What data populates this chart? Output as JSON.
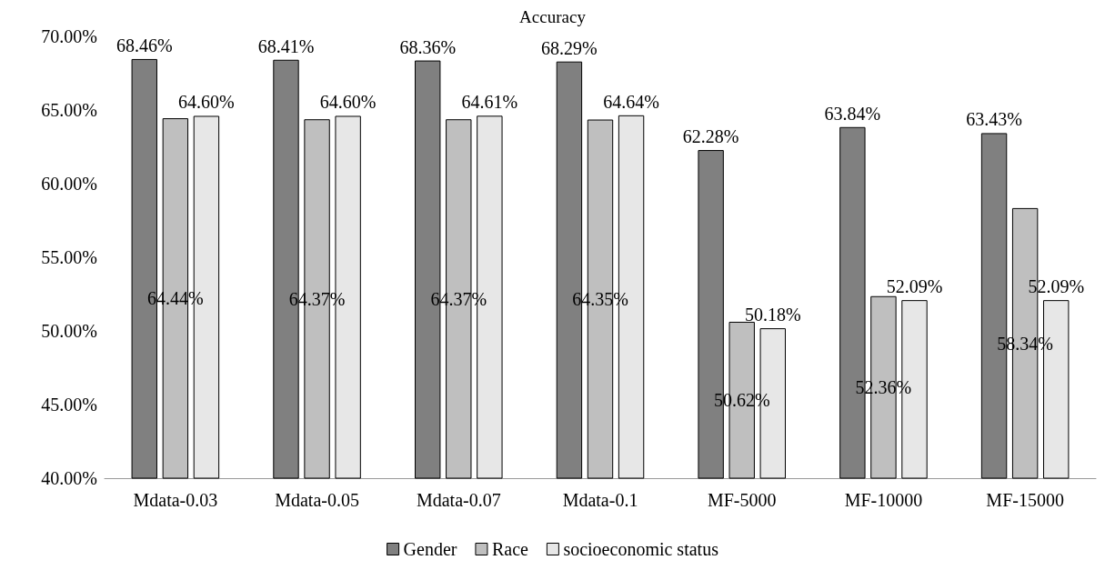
{
  "chart_data": {
    "type": "bar",
    "title": "Accuracy",
    "categories": [
      "Mdata-0.03",
      "Mdata-0.05",
      "Mdata-0.07",
      "Mdata-0.1",
      "MF-5000",
      "MF-10000",
      "MF-15000"
    ],
    "series": [
      {
        "name": "Gender",
        "color": "#808080",
        "values": [
          68.46,
          68.41,
          68.36,
          68.29,
          62.28,
          63.84,
          63.43
        ],
        "value_labels": [
          "68.46%",
          "68.41%",
          "68.36%",
          "68.29%",
          "62.28%",
          "63.84%",
          "63.43%"
        ]
      },
      {
        "name": "Race",
        "color": "#bfbfbf",
        "values": [
          64.44,
          64.37,
          64.37,
          64.35,
          50.62,
          52.36,
          58.34
        ],
        "value_labels": [
          "64.44%",
          "64.37%",
          "64.37%",
          "64.35%",
          "50.62%",
          "52.36%",
          "58.34%"
        ]
      },
      {
        "name": "socioeconomic status",
        "color": "#e7e7e7",
        "values": [
          64.6,
          64.6,
          64.61,
          64.64,
          50.18,
          52.09,
          52.09
        ],
        "value_labels": [
          "64.60%",
          "64.60%",
          "64.61%",
          "64.64%",
          "50.18%",
          "52.09%",
          "52.09%"
        ]
      }
    ],
    "ylim": [
      40,
      70
    ],
    "yticks": [
      {
        "value": 40,
        "label": "40.00%"
      },
      {
        "value": 45,
        "label": "45.00%"
      },
      {
        "value": 50,
        "label": "50.00%"
      },
      {
        "value": 55,
        "label": "55.00%"
      },
      {
        "value": 60,
        "label": "60.00%"
      },
      {
        "value": 65,
        "label": "65.00%"
      },
      {
        "value": 70,
        "label": "70.00%"
      }
    ],
    "grid": false,
    "legend": "bottom"
  }
}
